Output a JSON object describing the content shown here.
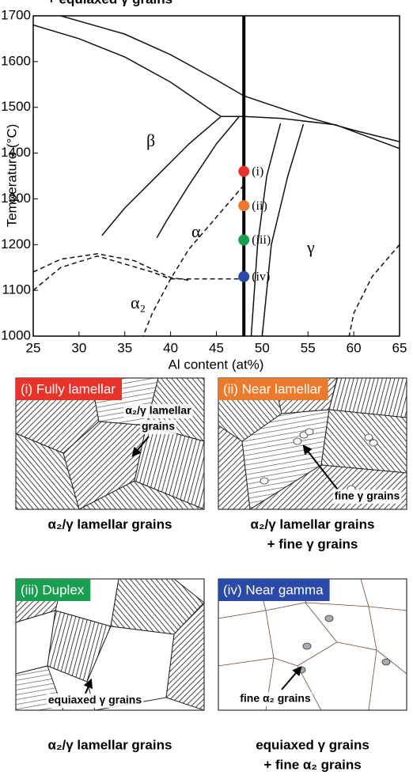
{
  "chart_data": {
    "type": "line",
    "xlabel": "Al content (at%)",
    "ylabel": "Temperature (°C)",
    "xlim": [
      25,
      65
    ],
    "ylim": [
      1000,
      1700
    ],
    "xticks": [
      25,
      30,
      35,
      40,
      45,
      50,
      55,
      60,
      65
    ],
    "yticks": [
      1000,
      1100,
      1200,
      1300,
      1400,
      1500,
      1600,
      1700
    ],
    "lines": [
      {
        "x": [
          28,
          35,
          40,
          45,
          48,
          55,
          60,
          65
        ],
        "values": [
          1700,
          1660,
          1615,
          1560,
          1525,
          1478,
          1450,
          1425
        ],
        "dash": false
      },
      {
        "x": [
          25,
          30,
          35,
          40,
          44,
          45.5
        ],
        "values": [
          1680,
          1650,
          1610,
          1555,
          1500,
          1480
        ],
        "dash": false
      },
      {
        "x": [
          45.5,
          48,
          52,
          58,
          65
        ],
        "values": [
          1480,
          1480,
          1476,
          1462,
          1410
        ],
        "dash": false
      },
      {
        "x": [
          45.5,
          42,
          38,
          35,
          32.5
        ],
        "values": [
          1480,
          1420,
          1340,
          1280,
          1220
        ],
        "dash": false
      },
      {
        "x": [
          47.5,
          45,
          42,
          39.5,
          38.5
        ],
        "values": [
          1480,
          1420,
          1330,
          1250,
          1215
        ],
        "dash": false
      },
      {
        "x": [
          52,
          50.5,
          49.5,
          48.8
        ],
        "values": [
          1465,
          1350,
          1200,
          1000
        ],
        "dash": false
      },
      {
        "x": [
          54.5,
          52.8,
          51,
          50
        ],
        "values": [
          1463,
          1350,
          1200,
          1000
        ],
        "dash": false
      },
      {
        "x": [
          25,
          28,
          32,
          36,
          40,
          42
        ],
        "values": [
          1140,
          1168,
          1180,
          1165,
          1128,
          1122
        ],
        "dash": true
      },
      {
        "x": [
          25,
          28,
          32,
          38,
          40
        ],
        "values": [
          1100,
          1150,
          1175,
          1140,
          1125
        ],
        "dash": true
      },
      {
        "x": [
          40,
          48
        ],
        "values": [
          1125,
          1125
        ],
        "dash": true
      },
      {
        "x": [
          48,
          45,
          42,
          40,
          38,
          37
        ],
        "values": [
          1330,
          1260,
          1190,
          1125,
          1050,
          1000
        ],
        "dash": true
      },
      {
        "x": [
          65,
          62,
          60,
          59.5
        ],
        "values": [
          1200,
          1130,
          1050,
          1000
        ],
        "dash": true
      }
    ],
    "alloy_x": 48,
    "series": [
      {
        "name": "(i)",
        "color": "#e8332b",
        "x": [
          48
        ],
        "values": [
          1360
        ]
      },
      {
        "name": "(ii)",
        "color": "#ec7a2c",
        "x": [
          48
        ],
        "values": [
          1285
        ]
      },
      {
        "name": "(iii)",
        "color": "#1a9e4f",
        "x": [
          48
        ],
        "values": [
          1210
        ]
      },
      {
        "name": "(iv)",
        "color": "#2b4aa8",
        "x": [
          48
        ],
        "values": [
          1130
        ]
      }
    ],
    "regions": [
      "β",
      "α",
      "γ",
      "α₂"
    ]
  },
  "panels": [
    {
      "title": "(i) Fully lamellar",
      "color": "#e8332b",
      "labels": [
        "α₂/γ lamellar",
        "grains"
      ],
      "caption": [
        "α₂/γ lamellar grains"
      ]
    },
    {
      "title": "(ii) Near lamellar",
      "color": "#ec7a2c",
      "labels": [
        "fine γ grains"
      ],
      "caption": [
        "α₂/γ lamellar grains",
        "+ fine γ grains"
      ]
    },
    {
      "title": "(iii) Duplex",
      "color": "#1a9e4f",
      "labels": [
        "equiaxed γ grains"
      ],
      "caption": [
        "α₂/γ lamellar grains",
        "+ equiaxed γ grains"
      ]
    },
    {
      "title": "(iv) Near gamma",
      "color": "#2b4aa8",
      "labels": [
        "fine α₂ grains"
      ],
      "caption": [
        "equiaxed γ grains",
        "+ fine α₂ grains"
      ]
    }
  ]
}
